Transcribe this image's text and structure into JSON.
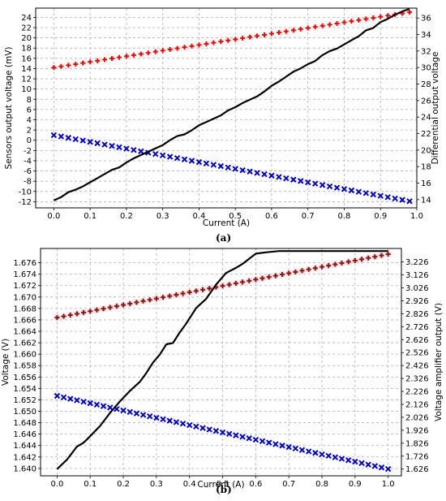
{
  "chart_data": [
    {
      "panel": "(a)",
      "type": "scatter",
      "title": "",
      "xlabel": "Current (A)",
      "ylabel": "Sensors output voltage (mV)",
      "y2label": "Differential output voltage",
      "xlim": [
        -0.05,
        1.0
      ],
      "ylim": [
        -13.2,
        25.8
      ],
      "y2lim": [
        13.0,
        37.2
      ],
      "xticks": [
        "0.0",
        "0.1",
        "0.2",
        "0.3",
        "0.4",
        "0.5",
        "0.6",
        "0.7",
        "0.8",
        "0.9",
        "1.0"
      ],
      "yticks": [
        "-12",
        "-10",
        "-8",
        "-6",
        "-4",
        "-2",
        "0",
        "2",
        "4",
        "6",
        "8",
        "10",
        "12",
        "14",
        "16",
        "18",
        "20",
        "22",
        "24"
      ],
      "y2ticks": [
        "14",
        "16",
        "18",
        "20",
        "22",
        "24",
        "26",
        "28",
        "30",
        "32",
        "34",
        "36"
      ],
      "grid": true,
      "series": [
        {
          "marker": "plus",
          "color": "#ff0000",
          "axis": "left",
          "x_start": 0.0,
          "x_step": 0.02,
          "count": 50,
          "y_start": 14.2,
          "y_end": 25.0
        },
        {
          "marker": "x",
          "color": "#0000cc",
          "axis": "left",
          "x_start": 0.0,
          "x_step": 0.02,
          "count": 50,
          "y_start": 1.0,
          "y_end": -11.9
        },
        {
          "marker": "line",
          "color": "#000000",
          "axis": "right",
          "x": [
            0.0,
            0.02,
            0.04,
            0.06,
            0.08,
            0.1,
            0.12,
            0.14,
            0.16,
            0.18,
            0.2,
            0.22,
            0.24,
            0.26,
            0.28,
            0.3,
            0.32,
            0.34,
            0.36,
            0.38,
            0.4,
            0.42,
            0.44,
            0.46,
            0.48,
            0.5,
            0.52,
            0.54,
            0.56,
            0.58,
            0.6,
            0.62,
            0.64,
            0.66,
            0.68,
            0.7,
            0.72,
            0.74,
            0.76,
            0.78,
            0.8,
            0.82,
            0.84,
            0.86,
            0.88,
            0.9,
            0.92,
            0.94,
            0.96,
            0.98
          ],
          "y": [
            13.9,
            14.3,
            14.9,
            15.2,
            15.6,
            16.1,
            16.6,
            17.1,
            17.6,
            17.9,
            18.5,
            19.0,
            19.4,
            19.8,
            20.2,
            20.6,
            21.2,
            21.7,
            21.9,
            22.4,
            23.0,
            23.4,
            23.8,
            24.2,
            24.8,
            25.2,
            25.7,
            26.1,
            26.5,
            27.1,
            27.8,
            28.3,
            28.9,
            29.5,
            29.9,
            30.4,
            30.8,
            31.5,
            32.0,
            32.3,
            32.8,
            33.3,
            33.8,
            34.5,
            34.8,
            35.5,
            35.9,
            36.4,
            36.8,
            37.1
          ]
        }
      ]
    },
    {
      "panel": "(b)",
      "type": "scatter",
      "title": "",
      "xlabel": "Current (A)",
      "ylabel": "Voltage (V)",
      "y2label": "Voltage amplifier output (V)",
      "xlim": [
        -0.05,
        1.04
      ],
      "ylim": [
        1.6387,
        1.6785
      ],
      "y2lim": [
        1.574,
        3.33
      ],
      "xticks": [
        "0.0",
        "0.1",
        "0.2",
        "0.3",
        "0.4",
        "0.5",
        "0.6",
        "0.7",
        "0.8",
        "0.9",
        "1.0"
      ],
      "yticks": [
        "1.640",
        "1.642",
        "1.644",
        "1.646",
        "1.648",
        "1.650",
        "1.652",
        "1.654",
        "1.656",
        "1.658",
        "1.660",
        "1.662",
        "1.664",
        "1.666",
        "1.668",
        "1.670",
        "1.672",
        "1.674",
        "1.676"
      ],
      "y2ticks": [
        "1.626",
        "1.726",
        "1.826",
        "1.926",
        "2.026",
        "2.126",
        "2.226",
        "2.326",
        "2.426",
        "2.526",
        "2.626",
        "2.726",
        "2.826",
        "2.926",
        "3.026",
        "3.126",
        "3.226"
      ],
      "grid": true,
      "series": [
        {
          "marker": "plus",
          "color": "#8b1a00",
          "axis": "left",
          "x_start": 0.0,
          "x_step": 0.02,
          "count": 51,
          "y_start": 1.6664,
          "y_end": 1.6775
        },
        {
          "marker": "x",
          "color": "#0000cc",
          "axis": "left",
          "x_start": 0.0,
          "x_step": 0.02,
          "count": 51,
          "y_start": 1.6527,
          "y_end": 1.6399
        },
        {
          "marker": "line",
          "color": "#000000",
          "axis": "right",
          "x": [
            0.0,
            0.03,
            0.06,
            0.08,
            0.1,
            0.13,
            0.16,
            0.19,
            0.22,
            0.25,
            0.27,
            0.29,
            0.31,
            0.33,
            0.35,
            0.37,
            0.39,
            0.42,
            0.45,
            0.48,
            0.51,
            0.54,
            0.56,
            0.58,
            0.6,
            0.63,
            0.67,
            0.72,
            0.8,
            0.9,
            1.0
          ],
          "y": [
            1.626,
            1.7,
            1.8,
            1.83,
            1.88,
            1.96,
            2.06,
            2.15,
            2.23,
            2.3,
            2.37,
            2.45,
            2.51,
            2.59,
            2.6,
            2.68,
            2.75,
            2.87,
            2.94,
            3.05,
            3.14,
            3.18,
            3.21,
            3.25,
            3.29,
            3.3,
            3.31,
            3.31,
            3.31,
            3.31,
            3.31
          ]
        }
      ]
    }
  ],
  "captions": {
    "a": "(a)",
    "b": "(b)"
  }
}
